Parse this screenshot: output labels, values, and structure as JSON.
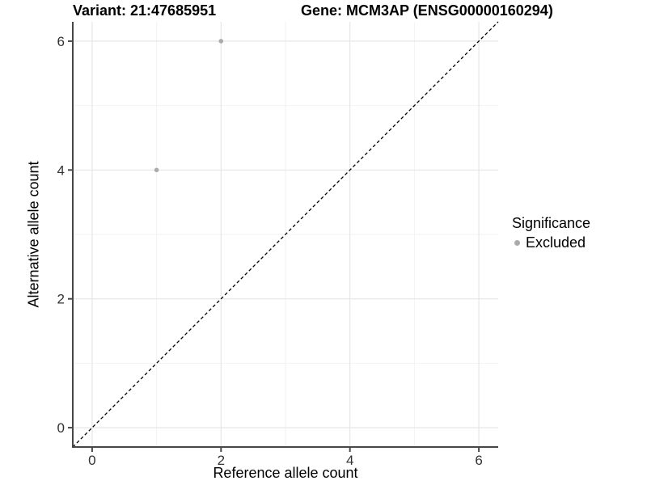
{
  "chart_data": {
    "type": "scatter",
    "titles": {
      "left": "Variant: 21:47685951",
      "right": "Gene: MCM3AP (ENSG00000160294)"
    },
    "xlabel": "Reference allele count",
    "ylabel": "Alternative allele count",
    "xlim": [
      -0.3,
      6.3
    ],
    "ylim": [
      -0.3,
      6.3
    ],
    "x_major_ticks": [
      0,
      2,
      4,
      6
    ],
    "y_major_ticks": [
      0,
      2,
      4,
      6
    ],
    "x_minor_gridlines": [
      1,
      3,
      5
    ],
    "y_minor_gridlines": [
      1,
      3,
      5
    ],
    "grid": true,
    "series": [
      {
        "name": "Excluded",
        "color": "#ababab",
        "points": [
          {
            "x": 1,
            "y": 4
          },
          {
            "x": 2,
            "y": 6
          }
        ]
      }
    ],
    "reference_line": {
      "type": "identity",
      "slope": 1,
      "intercept": 0,
      "style": "dashed",
      "color": "#000000"
    },
    "legend": {
      "position": "right",
      "title": "Significance",
      "entries": [
        {
          "label": "Excluded",
          "color": "#ababab"
        }
      ]
    },
    "colors": {
      "grid_major": "#e6e6e6",
      "grid_minor": "#f2f2f2",
      "axis_line": "#474747",
      "tick_label": "#333333",
      "point": "#ababab"
    }
  }
}
